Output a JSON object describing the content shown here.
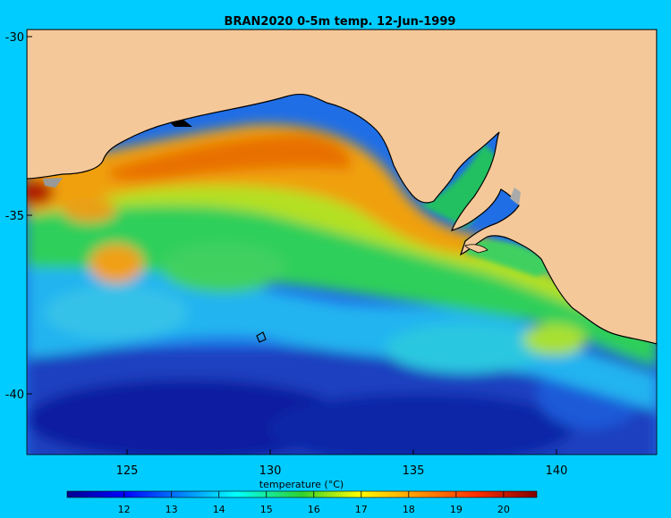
{
  "chart_data": {
    "type": "heatmap",
    "title": "BRAN2020 0-5m temp. 12-Jun-1999",
    "x_ticks": [
      "125",
      "130",
      "135",
      "140"
    ],
    "x_tick_values": [
      125,
      130,
      135,
      140
    ],
    "y_ticks": [
      "-30",
      "-35",
      "-40"
    ],
    "y_tick_values": [
      -30,
      -35,
      -40
    ],
    "xlim": [
      121.5,
      143.5
    ],
    "ylim": [
      -41.7,
      -29.8
    ],
    "colorbar": {
      "label": "temperature (°C)",
      "ticks": [
        "12",
        "13",
        "14",
        "15",
        "16",
        "17",
        "18",
        "19",
        "20"
      ],
      "tick_values": [
        12,
        13,
        14,
        15,
        16,
        17,
        18,
        19,
        20
      ],
      "range": [
        10.8,
        20.7
      ],
      "colormap": "jet"
    },
    "land_color": "#f5c89a",
    "background_color": "#00ccff"
  }
}
